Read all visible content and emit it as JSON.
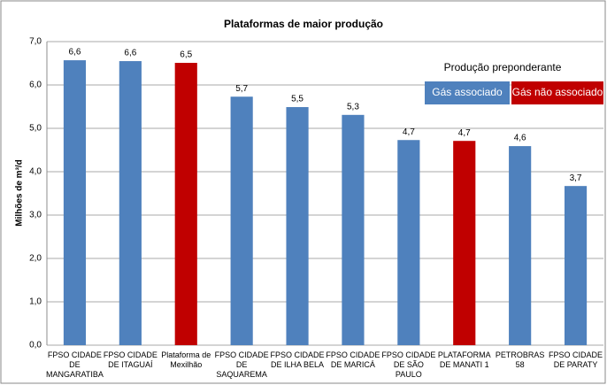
{
  "chart_data": {
    "type": "bar",
    "title": "Plataformas de maior produção",
    "y_label": "Milhões de m³/d",
    "categories": [
      "FPSO CIDADE DE MANGARATIBA",
      "FPSO CIDADE DE ITAGUAÍ",
      "Plataforma de Mexilhão",
      "FPSO CIDADE DE SAQUAREMA",
      "FPSO CIDADE DE ILHA BELA",
      "FPSO CIDADE DE MARICÁ",
      "FPSO CIDADE DE SÃO PAULO",
      "PLATAFORMA DE MANATI 1",
      "PETROBRAS 58",
      "FPSO CIDADE DE PARATY"
    ],
    "values": [
      6.57,
      6.55,
      6.51,
      5.73,
      5.49,
      5.31,
      4.73,
      4.71,
      4.59,
      3.67
    ],
    "value_labels": [
      "6,6",
      "6,6",
      "6,5",
      "5,7",
      "5,5",
      "5,3",
      "4,7",
      "4,7",
      "4,6",
      "3,7"
    ],
    "colors": [
      "#4f81bd",
      "#4f81bd",
      "#c00000",
      "#4f81bd",
      "#4f81bd",
      "#4f81bd",
      "#4f81bd",
      "#c00000",
      "#4f81bd",
      "#4f81bd"
    ],
    "legend": {
      "title": "Produção preponderante",
      "items": [
        {
          "name": "Gás associado",
          "color": "#4f81bd"
        },
        {
          "name": "Gás não associado",
          "color": "#c00000"
        }
      ]
    },
    "ylim": [
      0,
      7
    ],
    "yticks": [
      {
        "value": 0,
        "label": "0,0"
      },
      {
        "value": 1,
        "label": "1,0"
      },
      {
        "value": 2,
        "label": "2,0"
      },
      {
        "value": 3,
        "label": "3,0"
      },
      {
        "value": 4,
        "label": "4,0"
      },
      {
        "value": 5,
        "label": "5,0"
      },
      {
        "value": 6,
        "label": "6,0"
      },
      {
        "value": 7,
        "label": "7,0"
      }
    ],
    "grid": true
  }
}
